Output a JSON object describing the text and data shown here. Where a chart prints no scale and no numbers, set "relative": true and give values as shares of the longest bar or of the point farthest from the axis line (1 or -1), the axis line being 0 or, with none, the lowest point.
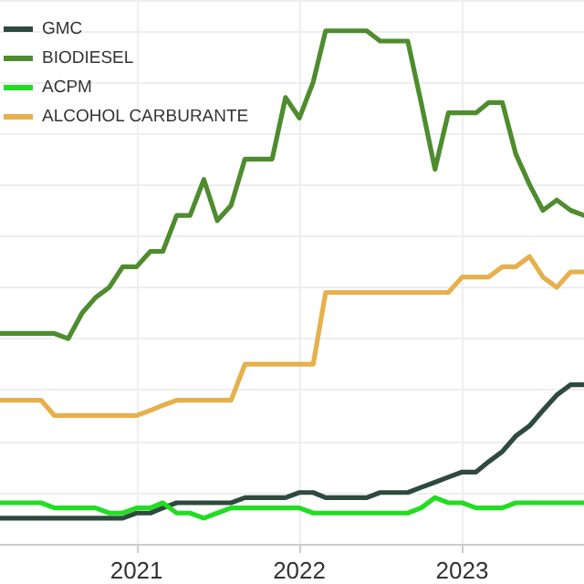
{
  "chart_data": {
    "type": "line",
    "relative": true,
    "grid": true,
    "legend": "top left",
    "marker": "none",
    "line_style": "solid",
    "x": [
      "2020-03",
      "2020-04",
      "2020-05",
      "2020-06",
      "2020-07",
      "2020-08",
      "2020-09",
      "2020-10",
      "2020-11",
      "2020-12",
      "2021-01",
      "2021-02",
      "2021-03",
      "2021-04",
      "2021-05",
      "2021-06",
      "2021-07",
      "2021-08",
      "2021-09",
      "2021-10",
      "2021-11",
      "2021-12",
      "2022-01",
      "2022-02",
      "2022-03",
      "2022-04",
      "2022-05",
      "2022-06",
      "2022-07",
      "2022-08",
      "2022-09",
      "2022-10",
      "2022-11",
      "2022-12",
      "2023-01",
      "2023-02",
      "2023-03",
      "2023-04",
      "2023-05",
      "2023-06",
      "2023-07",
      "2023-08",
      "2023-09",
      "2023-10"
    ],
    "xlim": [
      "2020-03",
      "2023-10"
    ],
    "xticks": [
      "2021",
      "2022",
      "2023"
    ],
    "series": [
      {
        "name": "GMC",
        "color": "#2e4a3e",
        "values": [
          0.05,
          0.05,
          0.05,
          0.05,
          0.05,
          0.05,
          0.05,
          0.05,
          0.05,
          0.05,
          0.06,
          0.06,
          0.07,
          0.08,
          0.08,
          0.08,
          0.08,
          0.08,
          0.09,
          0.09,
          0.09,
          0.09,
          0.1,
          0.1,
          0.09,
          0.09,
          0.09,
          0.09,
          0.1,
          0.1,
          0.1,
          0.11,
          0.12,
          0.13,
          0.14,
          0.14,
          0.16,
          0.18,
          0.21,
          0.23,
          0.26,
          0.29,
          0.31,
          0.31
        ]
      },
      {
        "name": "BIODIESEL",
        "color": "#4e8c2e",
        "values": [
          0.41,
          0.41,
          0.41,
          0.41,
          0.41,
          0.4,
          0.45,
          0.48,
          0.5,
          0.54,
          0.54,
          0.57,
          0.57,
          0.64,
          0.64,
          0.71,
          0.63,
          0.66,
          0.75,
          0.75,
          0.75,
          0.87,
          0.83,
          0.9,
          1.0,
          1.0,
          1.0,
          1.0,
          0.98,
          0.98,
          0.98,
          0.86,
          0.73,
          0.84,
          0.84,
          0.84,
          0.86,
          0.86,
          0.76,
          0.7,
          0.65,
          0.67,
          0.65,
          0.64
        ]
      },
      {
        "name": "ACPM",
        "color": "#22dd22",
        "values": [
          0.08,
          0.08,
          0.08,
          0.08,
          0.07,
          0.07,
          0.07,
          0.07,
          0.06,
          0.06,
          0.07,
          0.07,
          0.08,
          0.06,
          0.06,
          0.05,
          0.06,
          0.07,
          0.07,
          0.07,
          0.07,
          0.07,
          0.07,
          0.06,
          0.06,
          0.06,
          0.06,
          0.06,
          0.06,
          0.06,
          0.06,
          0.07,
          0.09,
          0.08,
          0.08,
          0.07,
          0.07,
          0.07,
          0.08,
          0.08,
          0.08,
          0.08,
          0.08,
          0.08
        ]
      },
      {
        "name": "ALCOHOL CARBURANTE",
        "color": "#e6b04c",
        "values": [
          0.28,
          0.28,
          0.28,
          0.28,
          0.25,
          0.25,
          0.25,
          0.25,
          0.25,
          0.25,
          0.25,
          0.26,
          0.27,
          0.28,
          0.28,
          0.28,
          0.28,
          0.28,
          0.35,
          0.35,
          0.35,
          0.35,
          0.35,
          0.35,
          0.49,
          0.49,
          0.49,
          0.49,
          0.49,
          0.49,
          0.49,
          0.49,
          0.49,
          0.49,
          0.52,
          0.52,
          0.52,
          0.54,
          0.54,
          0.56,
          0.52,
          0.5,
          0.53,
          0.53
        ]
      }
    ]
  }
}
